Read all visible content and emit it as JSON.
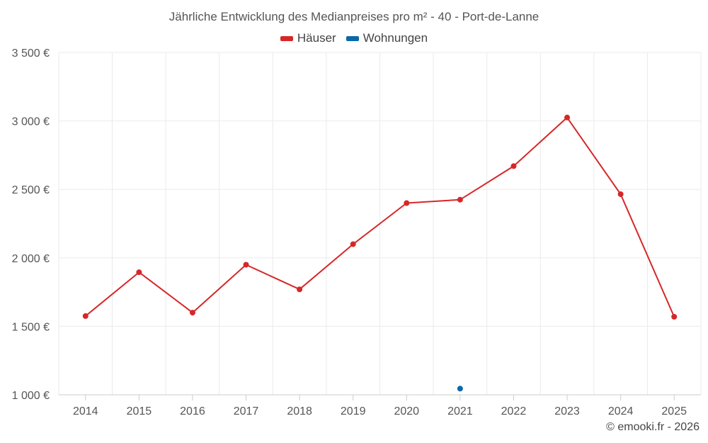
{
  "chart_data": {
    "type": "line",
    "title": "Jährliche Entwicklung des Medianpreises pro m² - 40 - Port-de-Lanne",
    "categories": [
      "2014",
      "2015",
      "2016",
      "2017",
      "2018",
      "2019",
      "2020",
      "2021",
      "2022",
      "2023",
      "2024",
      "2025"
    ],
    "series": [
      {
        "name": "Häuser",
        "color": "#d62728",
        "values": [
          1575,
          1895,
          1600,
          1950,
          1770,
          2100,
          2400,
          2425,
          2670,
          3025,
          2465,
          1570
        ]
      },
      {
        "name": "Wohnungen",
        "color": "#0a69a8",
        "values": [
          null,
          null,
          null,
          null,
          null,
          null,
          null,
          1045,
          null,
          null,
          null,
          null
        ]
      }
    ],
    "ylim": [
      1000,
      3500
    ],
    "yticks": [
      1000,
      1500,
      2000,
      2500,
      3000,
      3500
    ],
    "ytick_labels": [
      "1 000 €",
      "1 500 €",
      "2 000 €",
      "2 500 €",
      "3 000 €",
      "3 500 €"
    ],
    "grid": true,
    "legend": "top-center"
  },
  "credit": "© emooki.fr - 2026"
}
